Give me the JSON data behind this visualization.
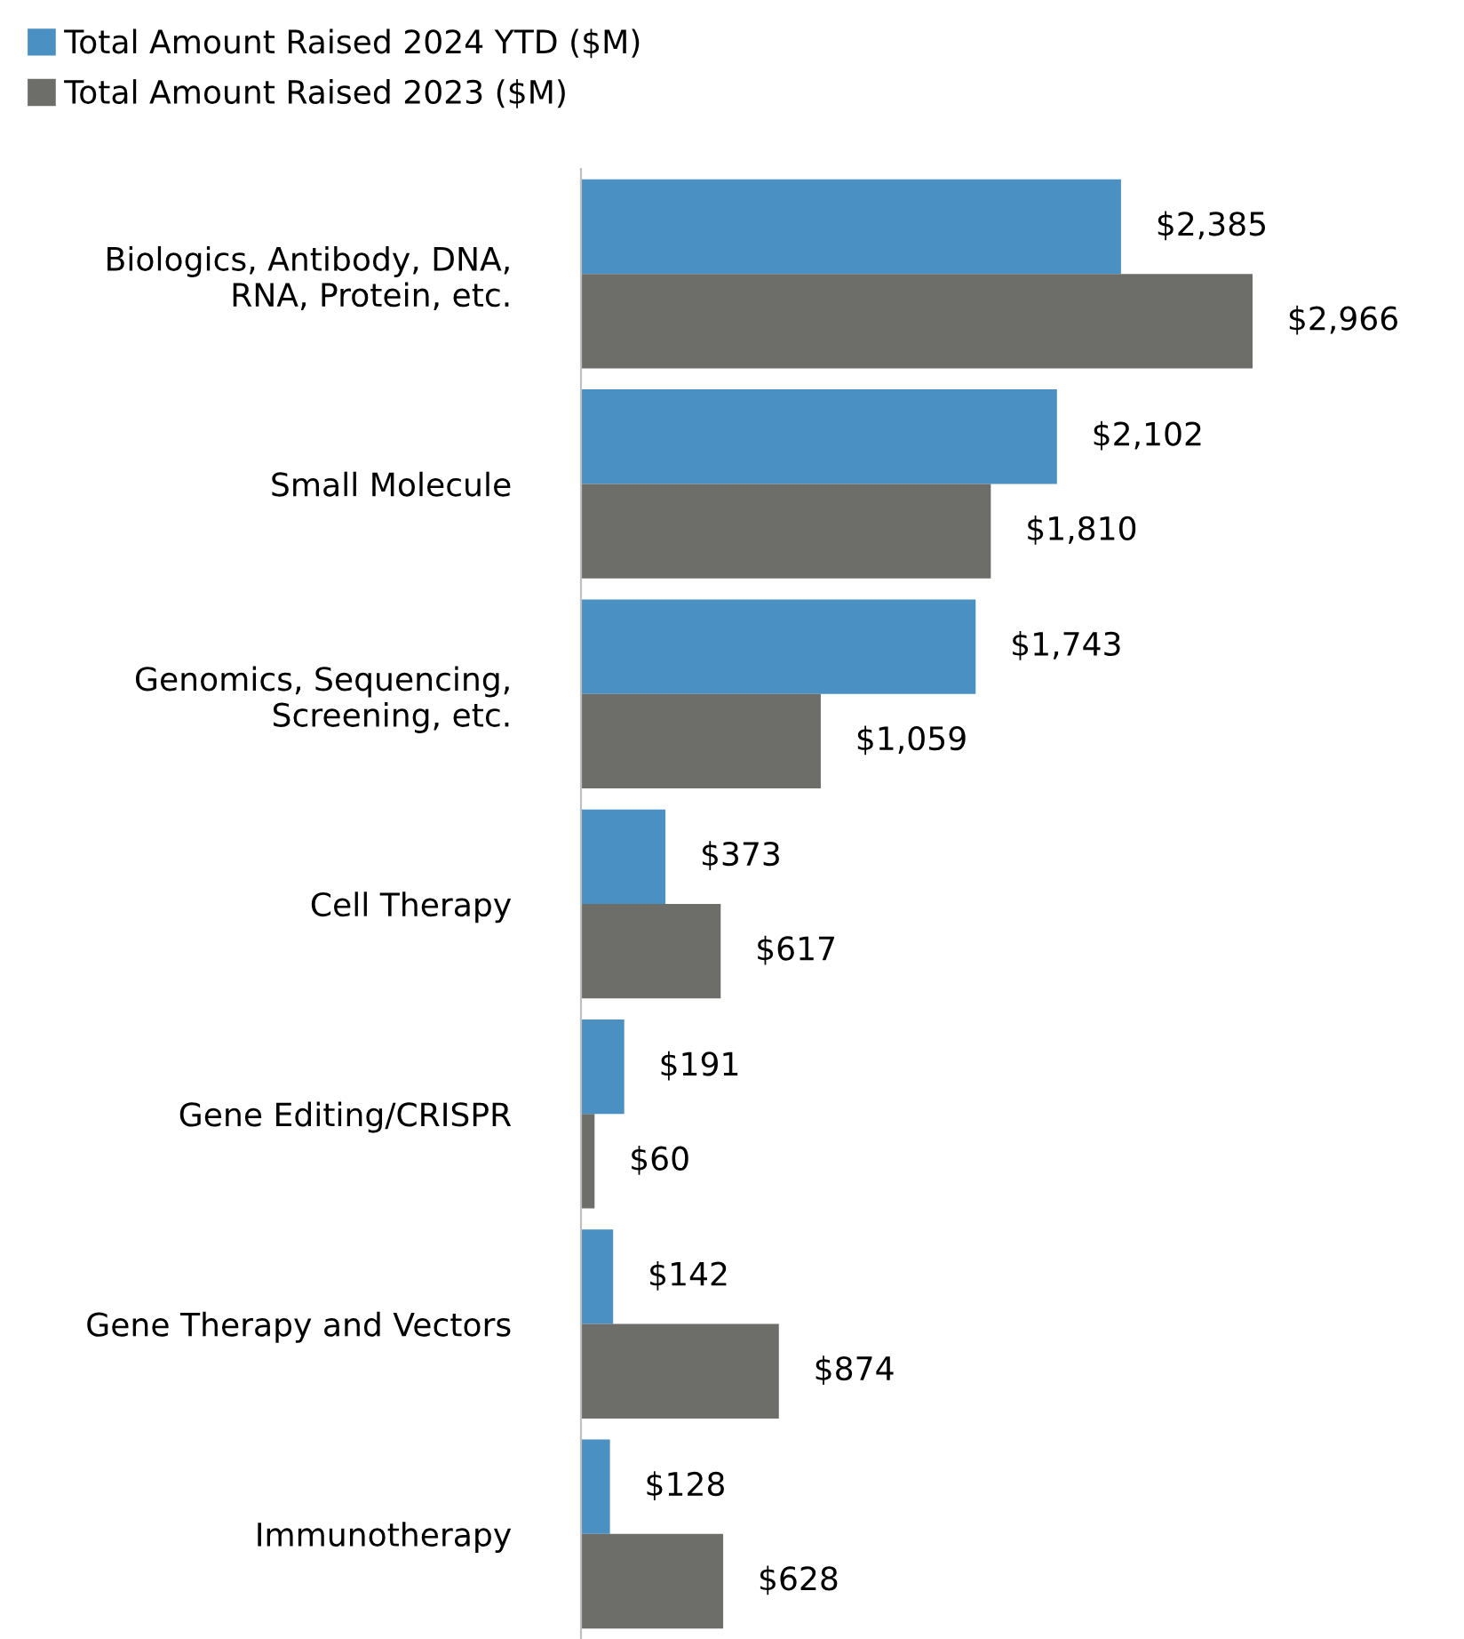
{
  "chart_data": {
    "type": "bar",
    "orientation": "horizontal",
    "legend": "top left",
    "categories": [
      "Biologics, Antibody, DNA,\nRNA, Protein, etc.",
      "Small Molecule",
      "Genomics, Sequencing,\nScreening, etc.",
      "Cell Therapy",
      "Gene Editing/CRISPR",
      "Gene Therapy and Vectors",
      "Immunotherapy"
    ],
    "series": [
      {
        "name": "Total Amount Raised 2024 YTD ($M)",
        "color": "#4a90c2",
        "values": [
          2385,
          2102,
          1743,
          373,
          191,
          142,
          128
        ],
        "value_labels": [
          "$2,385",
          "$2,102",
          "$1,743",
          "$373",
          "$191",
          "$142",
          "$128"
        ]
      },
      {
        "name": "Total Amount Raised 2023 ($M)",
        "color": "#6d6d69",
        "values": [
          2966,
          1810,
          1059,
          617,
          60,
          874,
          628
        ],
        "value_labels": [
          "$2,966",
          "$1,810",
          "$1,059",
          "$617",
          "$60",
          "$874",
          "$628"
        ]
      }
    ]
  }
}
